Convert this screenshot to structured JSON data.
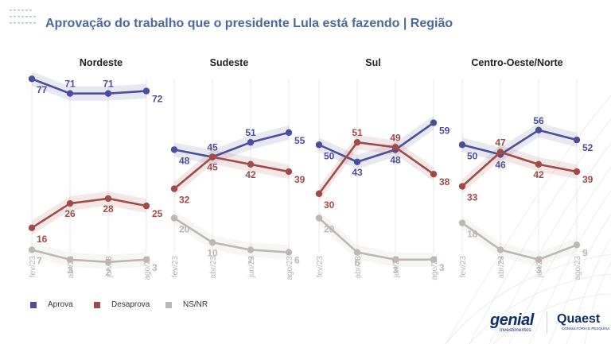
{
  "title": "Aprovação do trabalho que o presidente Lula está fazendo | Região",
  "colors": {
    "aprova": "#4b4e99",
    "desaprova": "#a14b48",
    "nsnr": "#bcb7b5",
    "title": "#4a6a9c"
  },
  "legend": [
    {
      "label": "Aprova",
      "color": "#4b4e99"
    },
    {
      "label": "Desaprova",
      "color": "#a14b48"
    },
    {
      "label": "NS/NR",
      "color": "#bcb7b5"
    }
  ],
  "logos": {
    "genial_name": "genial",
    "genial_sub": "investimentos",
    "quaest_name": "Quaest",
    "quaest_sub": "CONSULTORIA E PESQUISA"
  },
  "chart_data": [
    {
      "type": "line",
      "title": "Nordeste",
      "categories": [
        "fev/23",
        "abr/23",
        "jun/23",
        "ago/23"
      ],
      "ylim": [
        0,
        80
      ],
      "series": [
        {
          "name": "Aprova",
          "values": [
            77,
            71,
            71,
            72
          ]
        },
        {
          "name": "Desaprova",
          "values": [
            16,
            26,
            28,
            25
          ]
        },
        {
          "name": "NS/NR",
          "values": [
            7,
            3,
            2,
            3
          ]
        }
      ]
    },
    {
      "type": "line",
      "title": "Sudeste",
      "categories": [
        "fev/23",
        "abr/23",
        "jun/23",
        "ago/23"
      ],
      "ylim": [
        0,
        80
      ],
      "series": [
        {
          "name": "Aprova",
          "values": [
            48,
            45,
            51,
            55
          ]
        },
        {
          "name": "Desaprova",
          "values": [
            32,
            45,
            42,
            39
          ]
        },
        {
          "name": "NS/NR",
          "values": [
            20,
            10,
            7,
            6
          ]
        }
      ]
    },
    {
      "type": "line",
      "title": "Sul",
      "categories": [
        "fev/23",
        "abr/23",
        "jun/23",
        "ago/23"
      ],
      "ylim": [
        0,
        80
      ],
      "series": [
        {
          "name": "Aprova",
          "values": [
            50,
            43,
            48,
            59
          ]
        },
        {
          "name": "Desaprova",
          "values": [
            30,
            51,
            49,
            38
          ]
        },
        {
          "name": "NS/NR",
          "values": [
            20,
            6,
            3,
            3
          ]
        }
      ]
    },
    {
      "type": "line",
      "title": "Centro-Oeste/Norte",
      "categories": [
        "fev/23",
        "abr/23",
        "jun/23",
        "ago/23"
      ],
      "ylim": [
        0,
        80
      ],
      "series": [
        {
          "name": "Aprova",
          "values": [
            50,
            46,
            56,
            52
          ]
        },
        {
          "name": "Desaprova",
          "values": [
            33,
            47,
            42,
            39
          ]
        },
        {
          "name": "NS/NR",
          "values": [
            18,
            7,
            3,
            9
          ]
        }
      ]
    }
  ]
}
